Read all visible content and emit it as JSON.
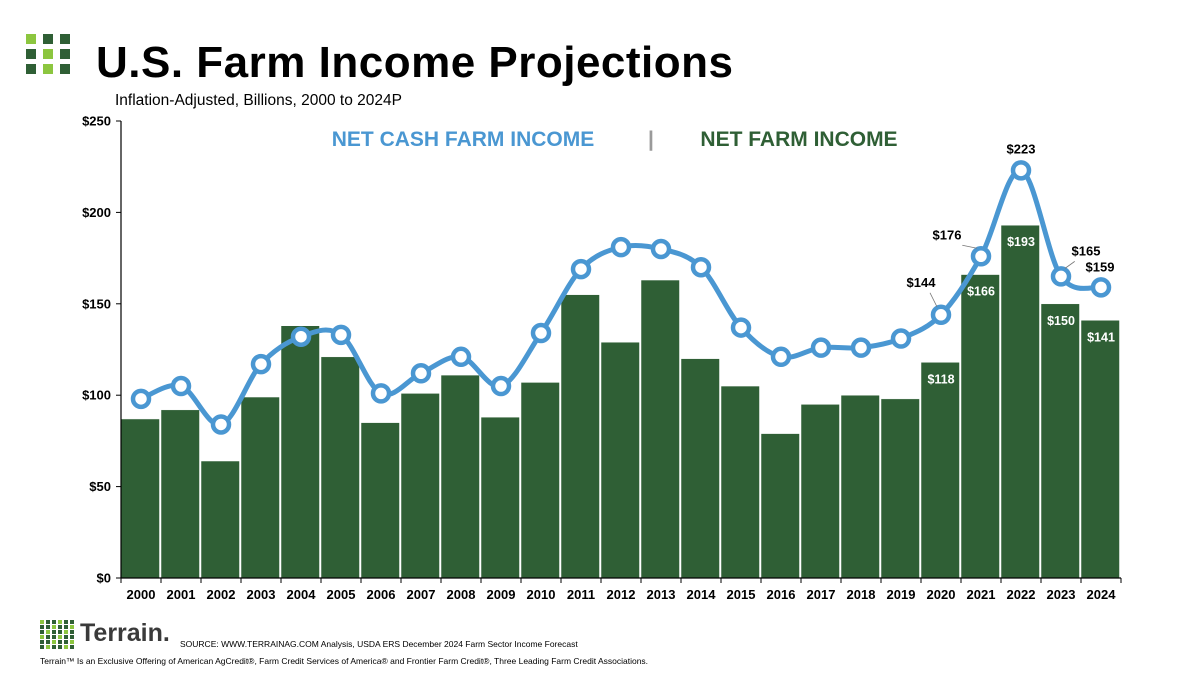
{
  "header": {
    "title": "U.S. Farm Income Projections",
    "subtitle": "Inflation-Adjusted, Billions, 2000 to 2024P"
  },
  "colors": {
    "bar": "#2f5f35",
    "line": "#4a97d2",
    "legend_separator": "#9a9a9a",
    "logo_light": "#8cc63f",
    "logo_dark": "#2f5f35"
  },
  "legend": {
    "line_label": "NET CASH FARM INCOME",
    "separator": "|",
    "bar_label": "NET FARM INCOME",
    "position": "top-center"
  },
  "chart_data": {
    "type": "bar",
    "ylim": [
      0,
      250
    ],
    "y_ticks": [
      "$0",
      "$50",
      "$100",
      "$150",
      "$200",
      "$250"
    ],
    "grid": false,
    "categories": [
      "2000",
      "2001",
      "2002",
      "2003",
      "2004",
      "2005",
      "2006",
      "2007",
      "2008",
      "2009",
      "2010",
      "2011",
      "2012",
      "2013",
      "2014",
      "2015",
      "2016",
      "2017",
      "2018",
      "2019",
      "2020",
      "2021",
      "2022",
      "2023",
      "2024"
    ],
    "series": [
      {
        "name": "NET FARM INCOME",
        "type": "bar",
        "values": [
          87,
          92,
          64,
          99,
          138,
          121,
          85,
          101,
          111,
          88,
          107,
          155,
          129,
          163,
          120,
          105,
          79,
          95,
          100,
          98,
          118,
          166,
          193,
          150,
          141
        ]
      },
      {
        "name": "NET CASH FARM INCOME",
        "type": "line",
        "values": [
          98,
          105,
          84,
          117,
          132,
          133,
          101,
          112,
          121,
          105,
          134,
          169,
          181,
          180,
          170,
          137,
          121,
          126,
          126,
          131,
          144,
          176,
          223,
          165,
          159
        ]
      }
    ],
    "bar_labels": [
      {
        "index": 20,
        "text": "$118"
      },
      {
        "index": 21,
        "text": "$166"
      },
      {
        "index": 22,
        "text": "$193"
      },
      {
        "index": 23,
        "text": "$150"
      },
      {
        "index": 24,
        "text": "$141"
      }
    ],
    "line_labels": [
      {
        "index": 20,
        "text": "$144"
      },
      {
        "index": 21,
        "text": "$176"
      },
      {
        "index": 22,
        "text": "$223"
      },
      {
        "index": 23,
        "text": "$165"
      },
      {
        "index": 24,
        "text": "$159"
      }
    ]
  },
  "footer": {
    "brand": "Terrain.",
    "source": "SOURCE: WWW.TERRAINAG.COM Analysis, USDA ERS December 2024 Farm Sector Income Forecast",
    "disclaimer": "Terrain™ Is an Exclusive Offering of American AgCredit®, Farm Credit Services of America® and Frontier Farm Credit®, Three Leading Farm Credit Associations."
  }
}
